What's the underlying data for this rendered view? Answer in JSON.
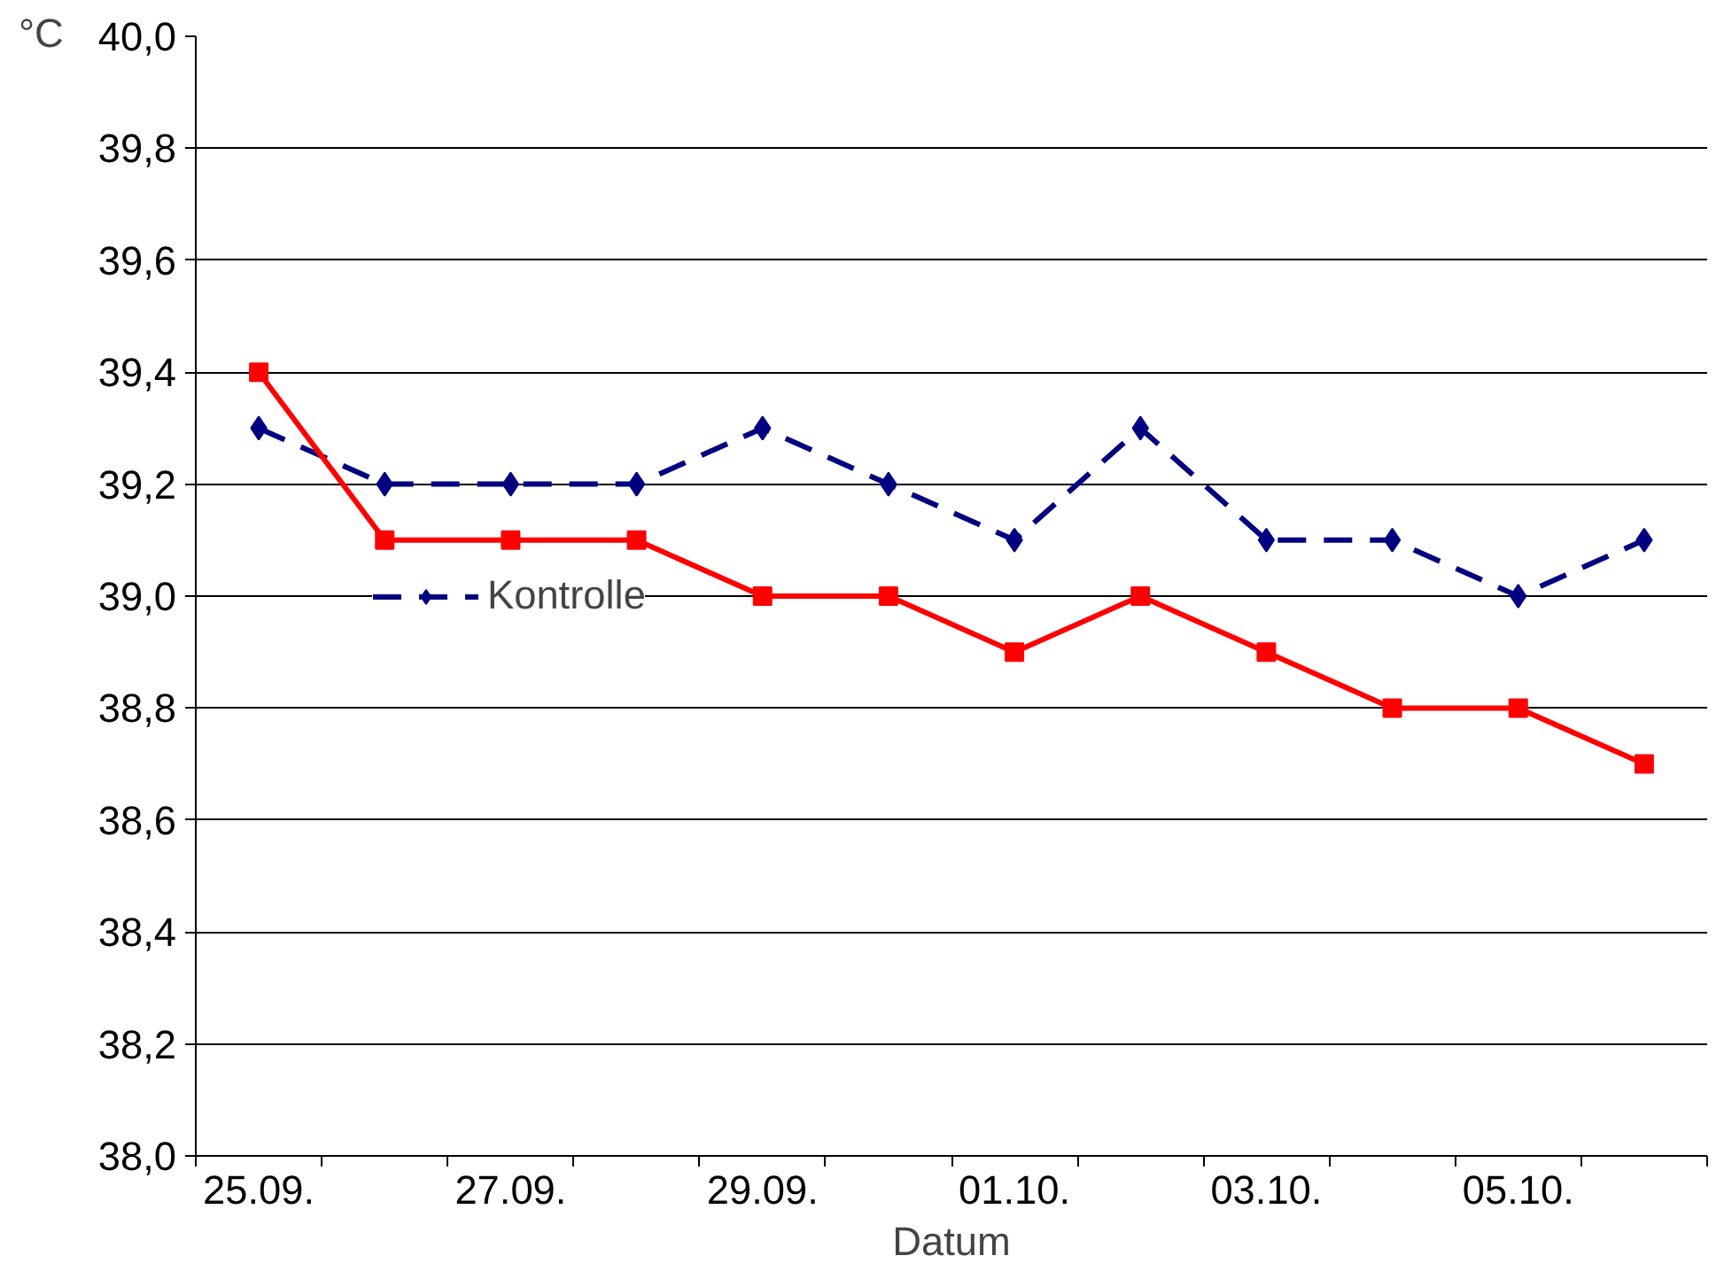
{
  "chart_data": {
    "type": "line",
    "xlabel": "Datum",
    "ylabel": "°C",
    "categories": [
      "25.09.",
      null,
      "27.09.",
      null,
      "29.09.",
      null,
      "01.10.",
      null,
      "03.10.",
      null,
      "05.10.",
      null
    ],
    "series": [
      {
        "name": "Kontrolle",
        "color": "#000080",
        "marker": "diamond",
        "line_style": "dashed",
        "values": [
          39.3,
          39.2,
          39.2,
          39.2,
          39.3,
          39.2,
          39.1,
          39.3,
          39.1,
          39.1,
          39.0,
          39.1
        ]
      },
      {
        "color": "#ff0000",
        "marker": "square",
        "line_style": "solid",
        "values": [
          39.4,
          39.1,
          39.1,
          39.1,
          39.0,
          39.0,
          38.9,
          39.0,
          38.9,
          38.8,
          38.8,
          38.7
        ]
      }
    ],
    "ylim": [
      38.0,
      40.0
    ],
    "yticks": [
      {
        "value": 38.0,
        "label": "38,0"
      },
      {
        "value": 38.2,
        "label": "38,2"
      },
      {
        "value": 38.4,
        "label": "38,4"
      },
      {
        "value": 38.6,
        "label": "38,6"
      },
      {
        "value": 38.8,
        "label": "38,8"
      },
      {
        "value": 39.0,
        "label": "39,0"
      },
      {
        "value": 39.2,
        "label": "39,2"
      },
      {
        "value": 39.4,
        "label": "39,4"
      },
      {
        "value": 39.6,
        "label": "39,6"
      },
      {
        "value": 39.8,
        "label": "39,8"
      },
      {
        "value": 40.0,
        "label": "40,0"
      }
    ],
    "grid": "y",
    "legend": "left"
  }
}
